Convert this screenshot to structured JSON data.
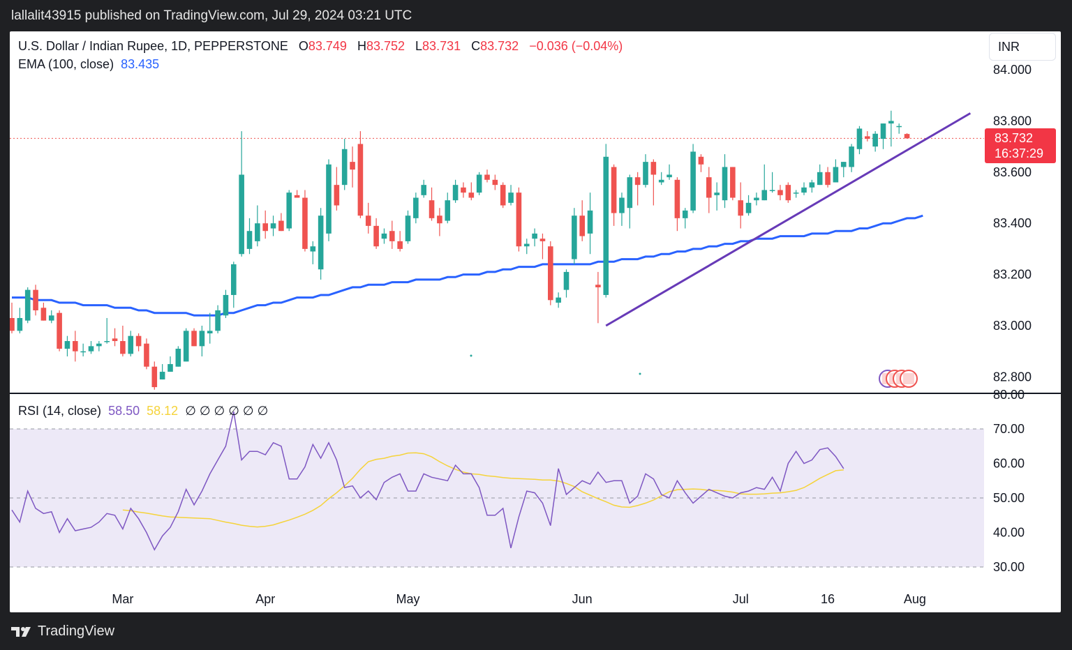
{
  "header": {
    "published_by": "lallalit43915 published on TradingView.com, Jul 29, 2024 03:21 UTC"
  },
  "footer": {
    "brand": "TradingView"
  },
  "legend": {
    "symbol": "U.S. Dollar / Indian Rupee, 1D, PEPPERSTONE",
    "o_label": "O",
    "o_value": "83.749",
    "h_label": "H",
    "h_value": "83.752",
    "l_label": "L",
    "l_value": "83.731",
    "c_label": "C",
    "c_value": "83.732",
    "change": "−0.036 (−0.04%)",
    "ema_label": "EMA (100, close)",
    "ema_value": "83.435",
    "rsi_label": "RSI (14, close)",
    "rsi_value": "58.50",
    "rsi_ma_value": "58.12",
    "rsi_extra": "∅ ∅ ∅ ∅ ∅ ∅"
  },
  "currency_label": "INR",
  "last_price": {
    "price": "83.732",
    "countdown": "16:37:29"
  },
  "colors": {
    "up": "#26a69a",
    "down": "#ef5350",
    "ema": "#2962ff",
    "trendline": "#673ab7",
    "rsi": "#7e57c2",
    "rsi_ma": "#f5d33a",
    "rsi_band": "#ede9f7"
  },
  "chart_data": [
    {
      "type": "candlestick",
      "title": "U.S. Dollar / Indian Rupee, 1D, PEPPERSTONE",
      "y_ticks": [
        "84.000",
        "83.800",
        "83.600",
        "83.400",
        "83.200",
        "83.000",
        "82.800"
      ],
      "ylim": [
        82.74,
        84.13
      ],
      "x_ticks": [
        "Mar",
        "Apr",
        "May",
        "Jun",
        "Jul",
        "16",
        "Aug"
      ],
      "candles": [
        {
          "o": 83.03,
          "h": 83.09,
          "l": 82.97,
          "c": 82.98
        },
        {
          "o": 82.98,
          "h": 83.07,
          "l": 82.97,
          "c": 83.03
        },
        {
          "o": 83.02,
          "h": 83.15,
          "l": 83.01,
          "c": 83.14
        },
        {
          "o": 83.14,
          "h": 83.16,
          "l": 83.04,
          "c": 83.06
        },
        {
          "o": 83.07,
          "h": 83.09,
          "l": 83.02,
          "c": 83.02
        },
        {
          "o": 83.02,
          "h": 83.06,
          "l": 83.01,
          "c": 83.04
        },
        {
          "o": 83.05,
          "h": 83.06,
          "l": 82.9,
          "c": 82.91
        },
        {
          "o": 82.91,
          "h": 82.96,
          "l": 82.88,
          "c": 82.94
        },
        {
          "o": 82.94,
          "h": 82.98,
          "l": 82.86,
          "c": 82.9
        },
        {
          "o": 82.9,
          "h": 82.93,
          "l": 82.88,
          "c": 82.9
        },
        {
          "o": 82.9,
          "h": 82.94,
          "l": 82.89,
          "c": 82.92
        },
        {
          "o": 82.92,
          "h": 82.94,
          "l": 82.9,
          "c": 82.93
        },
        {
          "o": 82.94,
          "h": 83.03,
          "l": 82.93,
          "c": 82.94
        },
        {
          "o": 82.95,
          "h": 82.99,
          "l": 82.92,
          "c": 82.94
        },
        {
          "o": 82.94,
          "h": 83.0,
          "l": 82.88,
          "c": 82.89
        },
        {
          "o": 82.89,
          "h": 82.98,
          "l": 82.88,
          "c": 82.96
        },
        {
          "o": 82.96,
          "h": 82.97,
          "l": 82.9,
          "c": 82.92
        },
        {
          "o": 82.93,
          "h": 82.95,
          "l": 82.83,
          "c": 82.84
        },
        {
          "o": 82.84,
          "h": 82.86,
          "l": 82.75,
          "c": 82.76
        },
        {
          "o": 82.79,
          "h": 82.85,
          "l": 82.79,
          "c": 82.82
        },
        {
          "o": 82.82,
          "h": 82.88,
          "l": 82.82,
          "c": 82.85
        },
        {
          "o": 82.84,
          "h": 82.92,
          "l": 82.84,
          "c": 82.91
        },
        {
          "o": 82.86,
          "h": 82.99,
          "l": 82.86,
          "c": 82.98
        },
        {
          "o": 82.98,
          "h": 82.99,
          "l": 82.92,
          "c": 82.92
        },
        {
          "o": 82.92,
          "h": 83.0,
          "l": 82.88,
          "c": 82.98
        },
        {
          "o": 82.97,
          "h": 83.05,
          "l": 82.93,
          "c": 82.98
        },
        {
          "o": 82.98,
          "h": 83.08,
          "l": 82.97,
          "c": 83.06
        },
        {
          "o": 83.04,
          "h": 83.14,
          "l": 83.03,
          "c": 83.12
        },
        {
          "o": 83.12,
          "h": 83.25,
          "l": 83.07,
          "c": 83.24
        },
        {
          "o": 83.28,
          "h": 83.76,
          "l": 83.27,
          "c": 83.59
        },
        {
          "o": 83.3,
          "h": 83.42,
          "l": 83.28,
          "c": 83.37
        },
        {
          "o": 83.33,
          "h": 83.47,
          "l": 83.31,
          "c": 83.4
        },
        {
          "o": 83.4,
          "h": 83.45,
          "l": 83.34,
          "c": 83.37
        },
        {
          "o": 83.38,
          "h": 83.43,
          "l": 83.35,
          "c": 83.4
        },
        {
          "o": 83.41,
          "h": 83.44,
          "l": 83.37,
          "c": 83.37
        },
        {
          "o": 83.38,
          "h": 83.53,
          "l": 83.37,
          "c": 83.52
        },
        {
          "o": 83.51,
          "h": 83.53,
          "l": 83.5,
          "c": 83.5
        },
        {
          "o": 83.5,
          "h": 83.53,
          "l": 83.29,
          "c": 83.3
        },
        {
          "o": 83.29,
          "h": 83.33,
          "l": 83.24,
          "c": 83.31
        },
        {
          "o": 83.22,
          "h": 83.46,
          "l": 83.18,
          "c": 83.43
        },
        {
          "o": 83.36,
          "h": 83.65,
          "l": 83.33,
          "c": 83.63
        },
        {
          "o": 83.55,
          "h": 83.62,
          "l": 83.45,
          "c": 83.47
        },
        {
          "o": 83.55,
          "h": 83.73,
          "l": 83.53,
          "c": 83.69
        },
        {
          "o": 83.64,
          "h": 83.7,
          "l": 83.54,
          "c": 83.61
        },
        {
          "o": 83.71,
          "h": 83.76,
          "l": 83.42,
          "c": 83.43
        },
        {
          "o": 83.43,
          "h": 83.48,
          "l": 83.36,
          "c": 83.39
        },
        {
          "o": 83.39,
          "h": 83.42,
          "l": 83.3,
          "c": 83.31
        },
        {
          "o": 83.34,
          "h": 83.38,
          "l": 83.32,
          "c": 83.36
        },
        {
          "o": 83.37,
          "h": 83.41,
          "l": 83.3,
          "c": 83.33
        },
        {
          "o": 83.33,
          "h": 83.37,
          "l": 83.29,
          "c": 83.3
        },
        {
          "o": 83.33,
          "h": 83.45,
          "l": 83.32,
          "c": 83.43
        },
        {
          "o": 83.42,
          "h": 83.52,
          "l": 83.4,
          "c": 83.5
        },
        {
          "o": 83.51,
          "h": 83.57,
          "l": 83.5,
          "c": 83.55
        },
        {
          "o": 83.49,
          "h": 83.54,
          "l": 83.41,
          "c": 83.42
        },
        {
          "o": 83.43,
          "h": 83.46,
          "l": 83.35,
          "c": 83.4
        },
        {
          "o": 83.41,
          "h": 83.52,
          "l": 83.4,
          "c": 83.49
        },
        {
          "o": 83.49,
          "h": 83.57,
          "l": 83.48,
          "c": 83.55
        },
        {
          "o": 83.54,
          "h": 83.56,
          "l": 83.5,
          "c": 83.52
        },
        {
          "o": 83.52,
          "h": 83.56,
          "l": 83.49,
          "c": 83.5
        },
        {
          "o": 83.52,
          "h": 83.6,
          "l": 83.51,
          "c": 83.59
        },
        {
          "o": 83.59,
          "h": 83.61,
          "l": 83.56,
          "c": 83.57
        },
        {
          "o": 83.57,
          "h": 83.59,
          "l": 83.53,
          "c": 83.55
        },
        {
          "o": 83.55,
          "h": 83.56,
          "l": 83.46,
          "c": 83.47
        },
        {
          "o": 83.48,
          "h": 83.55,
          "l": 83.47,
          "c": 83.52
        },
        {
          "o": 83.52,
          "h": 83.54,
          "l": 83.29,
          "c": 83.31
        },
        {
          "o": 83.31,
          "h": 83.34,
          "l": 83.28,
          "c": 83.32
        },
        {
          "o": 83.34,
          "h": 83.38,
          "l": 83.31,
          "c": 83.36
        },
        {
          "o": 83.34,
          "h": 83.36,
          "l": 83.26,
          "c": 83.33
        },
        {
          "o": 83.31,
          "h": 83.33,
          "l": 83.08,
          "c": 83.1
        },
        {
          "o": 83.09,
          "h": 83.13,
          "l": 83.07,
          "c": 83.11
        },
        {
          "o": 83.14,
          "h": 83.22,
          "l": 83.11,
          "c": 83.21
        },
        {
          "o": 83.26,
          "h": 83.46,
          "l": 83.24,
          "c": 83.43
        },
        {
          "o": 83.43,
          "h": 83.49,
          "l": 83.33,
          "c": 83.35
        },
        {
          "o": 83.36,
          "h": 83.52,
          "l": 83.28,
          "c": 83.45
        },
        {
          "o": 83.16,
          "h": 83.21,
          "l": 83.01,
          "c": 83.15
        },
        {
          "o": 83.12,
          "h": 83.71,
          "l": 83.11,
          "c": 83.66
        },
        {
          "o": 83.62,
          "h": 83.63,
          "l": 83.39,
          "c": 83.44
        },
        {
          "o": 83.44,
          "h": 83.52,
          "l": 83.39,
          "c": 83.5
        },
        {
          "o": 83.46,
          "h": 83.59,
          "l": 83.38,
          "c": 83.58
        },
        {
          "o": 83.58,
          "h": 83.6,
          "l": 83.47,
          "c": 83.55
        },
        {
          "o": 83.55,
          "h": 83.67,
          "l": 83.54,
          "c": 83.64
        },
        {
          "o": 83.64,
          "h": 83.65,
          "l": 83.47,
          "c": 83.59
        },
        {
          "o": 83.56,
          "h": 83.6,
          "l": 83.55,
          "c": 83.57
        },
        {
          "o": 83.58,
          "h": 83.63,
          "l": 83.57,
          "c": 83.59
        },
        {
          "o": 83.57,
          "h": 83.58,
          "l": 83.37,
          "c": 83.42
        },
        {
          "o": 83.42,
          "h": 83.46,
          "l": 83.38,
          "c": 83.45
        },
        {
          "o": 83.45,
          "h": 83.71,
          "l": 83.44,
          "c": 83.68
        },
        {
          "o": 83.66,
          "h": 83.67,
          "l": 83.6,
          "c": 83.63
        },
        {
          "o": 83.58,
          "h": 83.62,
          "l": 83.44,
          "c": 83.5
        },
        {
          "o": 83.51,
          "h": 83.56,
          "l": 83.45,
          "c": 83.52
        },
        {
          "o": 83.49,
          "h": 83.67,
          "l": 83.46,
          "c": 83.62
        },
        {
          "o": 83.62,
          "h": 83.62,
          "l": 83.49,
          "c": 83.5
        },
        {
          "o": 83.49,
          "h": 83.56,
          "l": 83.38,
          "c": 83.43
        },
        {
          "o": 83.44,
          "h": 83.51,
          "l": 83.43,
          "c": 83.48
        },
        {
          "o": 83.49,
          "h": 83.52,
          "l": 83.47,
          "c": 83.5
        },
        {
          "o": 83.49,
          "h": 83.63,
          "l": 83.49,
          "c": 83.53
        },
        {
          "o": 83.53,
          "h": 83.6,
          "l": 83.52,
          "c": 83.53
        },
        {
          "o": 83.53,
          "h": 83.55,
          "l": 83.49,
          "c": 83.51
        },
        {
          "o": 83.55,
          "h": 83.56,
          "l": 83.48,
          "c": 83.49
        },
        {
          "o": 83.52,
          "h": 83.53,
          "l": 83.5,
          "c": 83.52
        },
        {
          "o": 83.52,
          "h": 83.56,
          "l": 83.51,
          "c": 83.54
        },
        {
          "o": 83.54,
          "h": 83.57,
          "l": 83.52,
          "c": 83.56
        },
        {
          "o": 83.55,
          "h": 83.63,
          "l": 83.55,
          "c": 83.6
        },
        {
          "o": 83.6,
          "h": 83.62,
          "l": 83.54,
          "c": 83.55
        },
        {
          "o": 83.56,
          "h": 83.65,
          "l": 83.56,
          "c": 83.62
        },
        {
          "o": 83.62,
          "h": 83.64,
          "l": 83.58,
          "c": 83.64
        },
        {
          "o": 83.62,
          "h": 83.71,
          "l": 83.6,
          "c": 83.7
        },
        {
          "o": 83.69,
          "h": 83.78,
          "l": 83.67,
          "c": 83.77
        },
        {
          "o": 83.74,
          "h": 83.76,
          "l": 83.72,
          "c": 83.73
        },
        {
          "o": 83.7,
          "h": 83.76,
          "l": 83.68,
          "c": 83.75
        },
        {
          "o": 83.73,
          "h": 83.79,
          "l": 83.69,
          "c": 83.79
        },
        {
          "o": 83.79,
          "h": 83.84,
          "l": 83.7,
          "c": 83.8
        },
        {
          "o": 83.78,
          "h": 83.79,
          "l": 83.75,
          "c": 83.78
        },
        {
          "o": 83.749,
          "h": 83.752,
          "l": 83.731,
          "c": 83.732
        }
      ],
      "ema_100": [
        83.11,
        83.11,
        83.11,
        83.1,
        83.1,
        83.1,
        83.09,
        83.09,
        83.09,
        83.08,
        83.08,
        83.08,
        83.08,
        83.07,
        83.07,
        83.07,
        83.06,
        83.06,
        83.05,
        83.05,
        83.05,
        83.05,
        83.05,
        83.04,
        83.04,
        83.04,
        83.04,
        83.05,
        83.05,
        83.06,
        83.07,
        83.08,
        83.08,
        83.09,
        83.09,
        83.1,
        83.11,
        83.11,
        83.11,
        83.12,
        83.12,
        83.13,
        83.14,
        83.15,
        83.15,
        83.16,
        83.16,
        83.16,
        83.17,
        83.17,
        83.17,
        83.18,
        83.18,
        83.18,
        83.18,
        83.19,
        83.19,
        83.2,
        83.2,
        83.2,
        83.21,
        83.21,
        83.22,
        83.22,
        83.23,
        83.23,
        83.23,
        83.24,
        83.24,
        83.24,
        83.24,
        83.24,
        83.24,
        83.24,
        83.25,
        83.25,
        83.25,
        83.26,
        83.26,
        83.26,
        83.27,
        83.27,
        83.28,
        83.28,
        83.29,
        83.29,
        83.3,
        83.3,
        83.31,
        83.31,
        83.32,
        83.32,
        83.33,
        83.33,
        83.34,
        83.34,
        83.34,
        83.35,
        83.35,
        83.35,
        83.35,
        83.36,
        83.36,
        83.36,
        83.37,
        83.37,
        83.37,
        83.38,
        83.38,
        83.39,
        83.4,
        83.4,
        83.41,
        83.42,
        83.42,
        83.43
      ],
      "trendline": {
        "start": {
          "index": 75,
          "value": 83.0
        },
        "end": {
          "index": 121,
          "value": 83.83
        }
      },
      "last_close_line": 83.732
    },
    {
      "type": "line",
      "title": "RSI (14, close)",
      "y_ticks": [
        "80.00",
        "70.00",
        "60.00",
        "50.00",
        "40.00",
        "30.00"
      ],
      "ylim": [
        28,
        80
      ],
      "band": [
        30,
        70
      ],
      "dashed_levels": [
        70,
        50,
        30
      ],
      "series": [
        {
          "name": "RSI",
          "values": [
            46.5,
            43,
            52,
            47,
            45.5,
            46,
            40,
            44,
            40.5,
            41,
            41.5,
            43,
            45.5,
            45,
            41,
            47,
            44,
            40,
            35,
            39,
            41.5,
            46,
            52.5,
            48,
            52,
            57,
            61,
            65,
            75,
            61,
            63.5,
            63.5,
            62.5,
            66,
            65,
            55.5,
            55.5,
            59,
            65.5,
            61.5,
            66,
            61,
            53,
            53.5,
            50,
            52,
            49.5,
            54.5,
            56,
            57,
            52,
            52,
            57,
            56,
            55.5,
            55,
            59.5,
            57,
            57,
            53,
            45,
            45,
            47,
            35.5,
            44.5,
            52,
            51.5,
            48.5,
            42,
            58.5,
            51,
            53,
            55,
            54,
            57.5,
            54.5,
            55,
            55,
            48.5,
            50.5,
            57,
            55.5,
            51,
            50,
            55,
            51.5,
            48.5,
            50.5,
            52.5,
            51.5,
            50.5,
            50,
            51.5,
            52,
            53,
            52.5,
            56,
            52,
            60,
            63.5,
            60,
            61,
            64,
            64.5,
            62,
            58.5
          ]
        },
        {
          "name": "RSI-based MA",
          "values": [
            46.5,
            46.3,
            45.9,
            45.6,
            45.2,
            44.8,
            44.5,
            44.4,
            44.3,
            44.2,
            44.1,
            44,
            43.5,
            43,
            42.6,
            42.1,
            41.8,
            41.6,
            41.8,
            42.2,
            42.9,
            43.6,
            44.4,
            45.3,
            46.4,
            47.8,
            49.8,
            51.5,
            53.5,
            55.7,
            58.3,
            60.5,
            61.2,
            61.5,
            62.1,
            62.4,
            63,
            63.1,
            62.8,
            61.9,
            60.5,
            59.3,
            58.3,
            57.5,
            57,
            56.8,
            56.4,
            56.2,
            55.9,
            55.7,
            55.6,
            55.5,
            55.4,
            55.2,
            55.2,
            54.9,
            54.2,
            53.3,
            51.8,
            50.8,
            49.8,
            48.9,
            47.9,
            47.4,
            47.3,
            47.8,
            48.5,
            49.4,
            50.6,
            51.8,
            52.4,
            52.5,
            52.6,
            52.5,
            52.2,
            52.2,
            52,
            51.7,
            51.2,
            51.1,
            51.1,
            51.2,
            51.4,
            51.5,
            51.8,
            52.2,
            53,
            54.3,
            55.7,
            56.8,
            57.9,
            58.12
          ]
        }
      ]
    }
  ]
}
